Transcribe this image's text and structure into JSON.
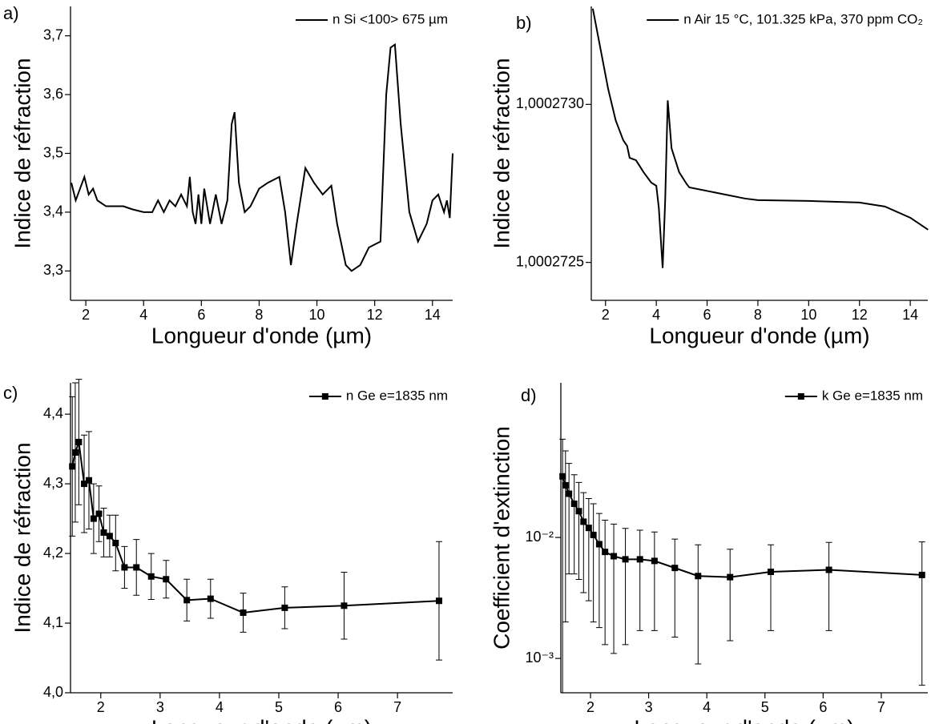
{
  "chart_data": [
    {
      "type": "line",
      "label": "a)",
      "xlabel": "Longueur d'onde (µm)",
      "ylabel": "Indice de réfraction",
      "xlim": [
        1.47,
        14.7
      ],
      "ylim": [
        3.25,
        3.75
      ],
      "xticks": [
        2,
        4,
        6,
        8,
        10,
        12,
        14
      ],
      "yticks": [
        {
          "value": 3.3,
          "label": "3,3"
        },
        {
          "value": 3.4,
          "label": "3,4"
        },
        {
          "value": 3.5,
          "label": "3,5"
        },
        {
          "value": 3.6,
          "label": "3,6"
        },
        {
          "value": 3.7,
          "label": "3,7"
        }
      ],
      "legend": "upper right",
      "series": [
        {
          "name": "n Si <100> 675 µm",
          "color": "#000000",
          "x": [
            1.5,
            1.65,
            1.8,
            1.95,
            2.1,
            2.25,
            2.4,
            2.7,
            3.0,
            3.3,
            3.6,
            4.0,
            4.3,
            4.5,
            4.7,
            4.9,
            5.1,
            5.3,
            5.5,
            5.6,
            5.7,
            5.8,
            5.9,
            6.0,
            6.1,
            6.3,
            6.5,
            6.7,
            6.9,
            7.05,
            7.15,
            7.3,
            7.5,
            7.7,
            8.0,
            8.3,
            8.7,
            8.9,
            9.1,
            9.3,
            9.6,
            9.9,
            10.2,
            10.5,
            10.7,
            11.0,
            11.2,
            11.5,
            11.8,
            12.0,
            12.2,
            12.4,
            12.55,
            12.7,
            12.9,
            13.2,
            13.5,
            13.8,
            14.0,
            14.2,
            14.4,
            14.5,
            14.6,
            14.7
          ],
          "values": [
            3.45,
            3.42,
            3.44,
            3.46,
            3.43,
            3.44,
            3.42,
            3.41,
            3.41,
            3.41,
            3.405,
            3.4,
            3.4,
            3.42,
            3.4,
            3.42,
            3.41,
            3.43,
            3.41,
            3.46,
            3.4,
            3.38,
            3.43,
            3.38,
            3.44,
            3.38,
            3.43,
            3.38,
            3.42,
            3.55,
            3.57,
            3.45,
            3.4,
            3.41,
            3.44,
            3.45,
            3.46,
            3.4,
            3.31,
            3.38,
            3.475,
            3.45,
            3.43,
            3.445,
            3.38,
            3.31,
            3.3,
            3.31,
            3.34,
            3.345,
            3.35,
            3.6,
            3.68,
            3.685,
            3.55,
            3.4,
            3.35,
            3.38,
            3.42,
            3.43,
            3.4,
            3.42,
            3.39,
            3.5
          ]
        }
      ]
    },
    {
      "type": "line",
      "label": "b)",
      "xlabel": "Longueur d'onde (µm)",
      "ylabel": "Indice de réfraction",
      "xlim": [
        1.44,
        14.69
      ],
      "ylim": [
        1.00027238,
        1.00027331
      ],
      "xticks": [
        2,
        4,
        6,
        8,
        10,
        12,
        14
      ],
      "yticks": [
        {
          "value": 1.0002725,
          "label": "1,0002725"
        },
        {
          "value": 1.000273,
          "label": "1,0002730"
        }
      ],
      "legend": "upper right",
      "series": [
        {
          "name": "n Air 15 °C, 101.325 kPa, 370 ppm CO₂",
          "color": "#000000",
          "x": [
            1.5,
            1.8,
            2.1,
            2.4,
            2.7,
            2.85,
            2.95,
            3.2,
            3.5,
            3.8,
            4.0,
            4.1,
            4.25,
            4.35,
            4.45,
            4.6,
            4.9,
            5.2,
            5.3,
            7.5,
            8.0,
            10.0,
            12.0,
            13.0,
            14.0,
            14.7
          ],
          "values": [
            1.000273303,
            1.0002731767,
            1.0002730505,
            1.0002729495,
            1.0002728863,
            1.0002728687,
            1.0002728308,
            1.0002728232,
            1.0002727853,
            1.0002727525,
            1.0002727424,
            1.0002726717,
            1.0002724823,
            1.000272697,
            1.0002730126,
            1.0002728611,
            1.0002727853,
            1.0002727475,
            1.0002727374,
            1.000272702,
            1.000272697,
            1.0002726944,
            1.0002726894,
            1.0002726768,
            1.0002726414,
            1.0002726035
          ]
        }
      ]
    },
    {
      "type": "line",
      "label": "c)",
      "xlabel": "Longueur d'onde (µm)",
      "ylabel": "Indice de réfraction",
      "xlim": [
        1.49,
        7.93
      ],
      "ylim": [
        4.0,
        4.445
      ],
      "xticks": [
        2,
        3,
        4,
        5,
        6,
        7
      ],
      "yticks": [
        {
          "value": 4.0,
          "label": "4,0"
        },
        {
          "value": 4.1,
          "label": "4,1"
        },
        {
          "value": 4.2,
          "label": "4,2"
        },
        {
          "value": 4.3,
          "label": "4,3"
        },
        {
          "value": 4.4,
          "label": "4,4"
        }
      ],
      "legend": "upper right",
      "marker": "square",
      "series": [
        {
          "name": "n Ge e=1835 nm",
          "color": "#000000",
          "x": [
            1.52,
            1.57,
            1.63,
            1.72,
            1.8,
            1.88,
            1.97,
            2.05,
            2.15,
            2.25,
            2.4,
            2.6,
            2.85,
            3.1,
            3.45,
            3.85,
            4.4,
            5.1,
            6.1,
            7.7
          ],
          "values": [
            4.325,
            4.345,
            4.36,
            4.3,
            4.305,
            4.25,
            4.257,
            4.23,
            4.225,
            4.215,
            4.18,
            4.18,
            4.167,
            4.163,
            4.133,
            4.135,
            4.115,
            4.122,
            4.125,
            4.132
          ],
          "errors": [
            0.1,
            0.1,
            0.09,
            0.07,
            0.07,
            0.05,
            0.04,
            0.035,
            0.03,
            0.04,
            0.03,
            0.04,
            0.033,
            0.027,
            0.03,
            0.028,
            0.028,
            0.03,
            0.048,
            0.085
          ]
        }
      ]
    },
    {
      "type": "line",
      "label": "d)",
      "xlabel": "Longueur d'onde (µm)",
      "ylabel": "Coefficient d'extinction",
      "xlim": [
        1.49,
        7.8
      ],
      "ylim": [
        0.00052,
        0.19
      ],
      "yscale": "log",
      "xticks": [
        2,
        3,
        4,
        5,
        6,
        7
      ],
      "yticks": [
        {
          "value": 0.001,
          "label": "10⁻³"
        },
        {
          "value": 0.01,
          "label": "10⁻²"
        }
      ],
      "legend": "upper right",
      "marker": "square",
      "series": [
        {
          "name": "k Ge e=1835 nm",
          "color": "#000000",
          "x": [
            1.52,
            1.57,
            1.63,
            1.72,
            1.8,
            1.88,
            1.97,
            2.05,
            2.15,
            2.25,
            2.4,
            2.6,
            2.85,
            3.1,
            3.45,
            3.85,
            4.4,
            5.1,
            6.1,
            7.7
          ],
          "values": [
            0.032,
            0.027,
            0.023,
            0.019,
            0.0165,
            0.0135,
            0.012,
            0.0105,
            0.0088,
            0.0076,
            0.007,
            0.0066,
            0.0066,
            0.0064,
            0.0056,
            0.0048,
            0.0047,
            0.0052,
            0.0054,
            0.0049
          ],
          "errors": [
            0.033,
            0.025,
            0.018,
            0.014,
            0.012,
            0.01,
            0.009,
            0.0085,
            0.007,
            0.0063,
            0.0059,
            0.0053,
            0.0049,
            0.0047,
            0.0041,
            0.0039,
            0.0033,
            0.0035,
            0.0037,
            0.0043
          ]
        }
      ]
    }
  ]
}
